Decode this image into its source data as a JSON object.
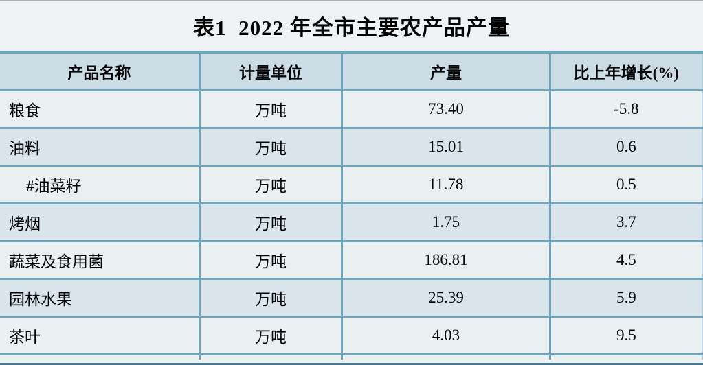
{
  "title": "表1  2022 年全市主要农产品产量",
  "table": {
    "headers": [
      "产品名称",
      "计量单位",
      "产量",
      "比上年增长(%)"
    ],
    "rows": [
      {
        "name": "粮食",
        "unit": "万吨",
        "output": "73.40",
        "growth": "-5.8"
      },
      {
        "name": "油料",
        "unit": "万吨",
        "output": "15.01",
        "growth": "0.6"
      },
      {
        "name": "#油菜籽",
        "unit": "万吨",
        "output": "11.78",
        "growth": "0.5"
      },
      {
        "name": "烤烟",
        "unit": "万吨",
        "output": "1.75",
        "growth": "3.7"
      },
      {
        "name": "蔬菜及食用菌",
        "unit": "万吨",
        "output": "186.81",
        "growth": "4.5"
      },
      {
        "name": "园林水果",
        "unit": "万吨",
        "output": "25.39",
        "growth": "5.9"
      },
      {
        "name": "茶叶",
        "unit": "万吨",
        "output": "4.03",
        "growth": "9.5"
      }
    ]
  },
  "colors": {
    "border_teal": "#6fa5ba",
    "header_bg": "#ccdce4",
    "row_light_bg": "#eaeff2",
    "row_blue_bg": "#d9e5eb",
    "bottom_edge": "#4d7d94",
    "page_bg": "#eef2f4",
    "text": "#060606"
  }
}
